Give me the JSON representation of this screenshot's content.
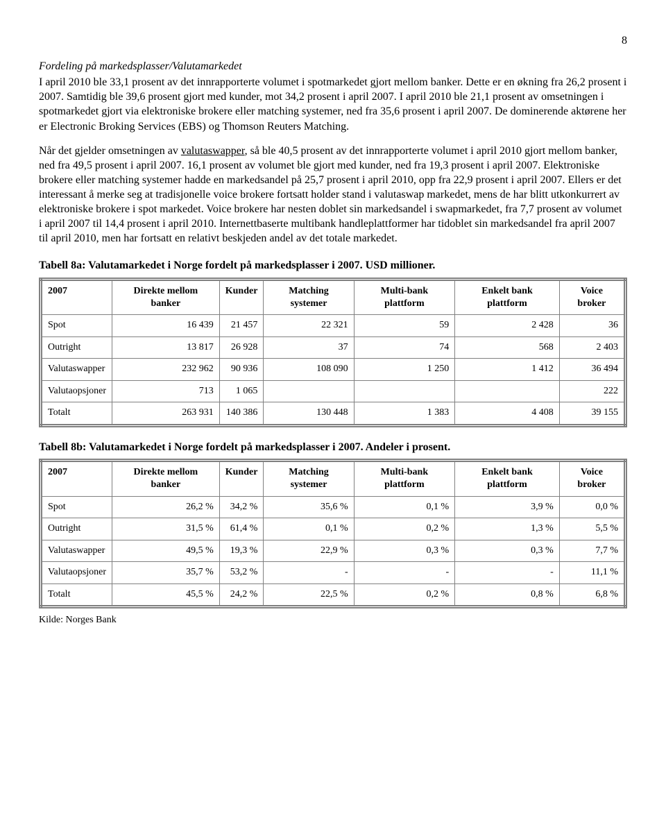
{
  "page_number": "8",
  "section_title": "Fordeling på markedsplasser/Valutamarkedet",
  "paragraph1": "I april 2010 ble 33,1 prosent av det innrapporterte volumet i spotmarkedet gjort mellom banker. Dette er en økning fra 26,2 prosent i 2007. Samtidig ble 39,6 prosent gjort med kunder, mot 34,2 prosent i april 2007. I april 2010 ble 21,1 prosent av omsetningen i spotmarkedet gjort via elektroniske brokere eller matching systemer, ned fra 35,6 prosent i april 2007. De dominerende aktørene her er Electronic Broking Services (EBS) og Thomson Reuters Matching.",
  "para2_pre": "Når det gjelder omsetningen av ",
  "para2_u": "valutaswapper",
  "para2_post": ", så ble 40,5 prosent av det innrapporterte volumet i april 2010 gjort mellom banker, ned fra 49,5 prosent i april 2007. 16,1 prosent av volumet ble gjort med kunder, ned fra 19,3 prosent i april 2007. Elektroniske brokere eller matching systemer hadde en markedsandel på 25,7 prosent i april 2010, opp fra 22,9 prosent i april 2007. Ellers er det interessant å merke seg at tradisjonelle voice brokere fortsatt holder stand i valutaswap markedet, mens de har blitt utkonkurrert av elektroniske brokere i spot markedet. Voice brokere har nesten doblet sin markedsandel i swapmarkedet, fra 7,7 prosent av volumet i april 2007 til 14,4 prosent i april 2010. Internettbaserte multibank handleplattformer har tidoblet sin markedsandel fra april 2007 til april 2010, men har fortsatt en relativt beskjeden andel av det totale markedet.",
  "table_a": {
    "title": "Tabell 8a: Valutamarkedet i Norge fordelt på markedsplasser i 2007. USD millioner.",
    "columns": [
      "2007",
      "Direkte mellom banker",
      "Kunder",
      "Matching systemer",
      "Multi-bank plattform",
      "Enkelt bank plattform",
      "Voice broker"
    ],
    "rows": [
      [
        "Spot",
        "16 439",
        "21 457",
        "22 321",
        "59",
        "2 428",
        "36"
      ],
      [
        "Outright",
        "13 817",
        "26 928",
        "37",
        "74",
        "568",
        "2 403"
      ],
      [
        "Valutaswapper",
        "232 962",
        "90 936",
        "108 090",
        "1 250",
        "1 412",
        "36 494"
      ],
      [
        "Valutaopsjoner",
        "713",
        "1 065",
        "",
        "",
        "",
        "222"
      ],
      [
        "Totalt",
        "263 931",
        "140 386",
        "130 448",
        "1 383",
        "4 408",
        "39 155"
      ]
    ]
  },
  "table_b": {
    "title": "Tabell 8b: Valutamarkedet i Norge fordelt på markedsplasser i 2007. Andeler i prosent.",
    "columns": [
      "2007",
      "Direkte mellom banker",
      "Kunder",
      "Matching systemer",
      "Multi-bank plattform",
      "Enkelt bank plattform",
      "Voice broker"
    ],
    "rows": [
      [
        "Spot",
        "26,2 %",
        "34,2 %",
        "35,6 %",
        "0,1 %",
        "3,9 %",
        "0,0 %"
      ],
      [
        "Outright",
        "31,5 %",
        "61,4 %",
        "0,1 %",
        "0,2 %",
        "1,3 %",
        "5,5 %"
      ],
      [
        "Valutaswapper",
        "49,5 %",
        "19,3 %",
        "22,9 %",
        "0,3 %",
        "0,3 %",
        "7,7 %"
      ],
      [
        "Valutaopsjoner",
        "35,7 %",
        "53,2 %",
        "-",
        "-",
        "-",
        "11,1 %"
      ],
      [
        "Totalt",
        "45,5 %",
        "24,2 %",
        "22,5 %",
        "0,2 %",
        "0,8 %",
        "6,8 %"
      ]
    ]
  },
  "source": "Kilde: Norges Bank"
}
